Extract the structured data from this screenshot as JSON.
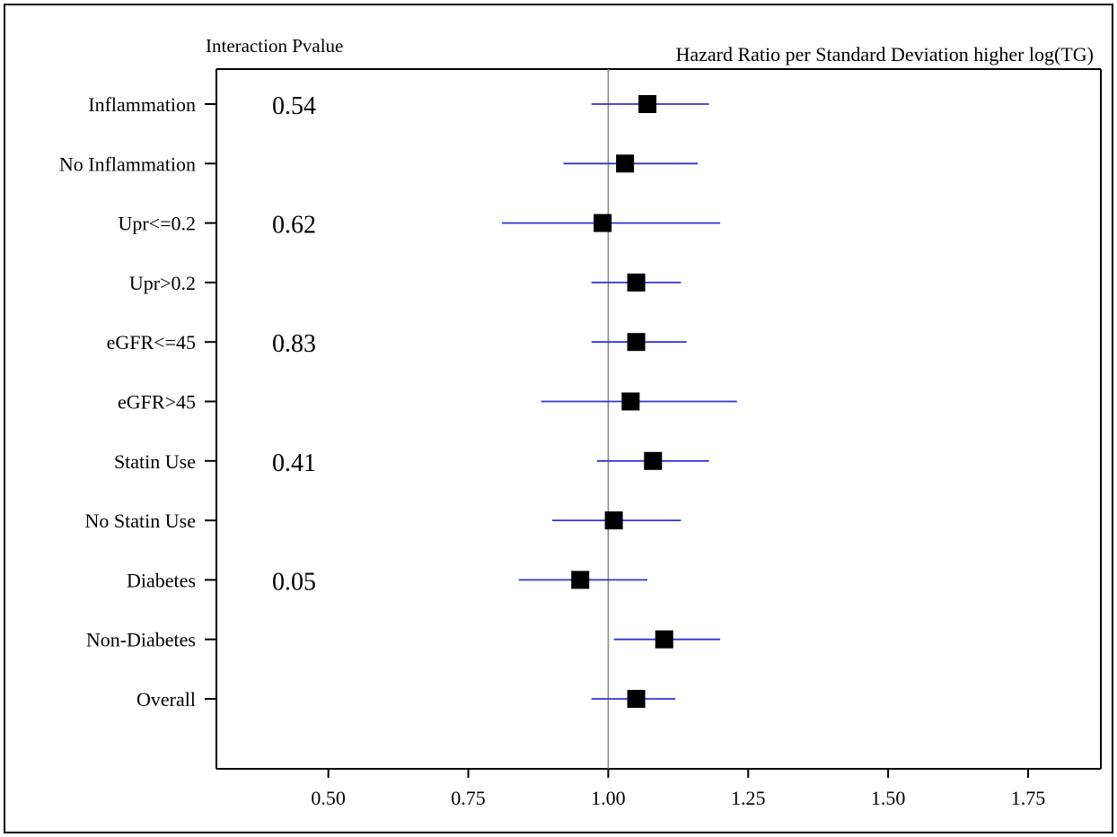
{
  "chart_data": {
    "type": "forest",
    "pvalue_header": "Interaction Pvalue",
    "xaxis_header": "Hazard Ratio per Standard Deviation higher log(TG)",
    "reference_line": 1.0,
    "xlim": [
      0.3,
      1.88
    ],
    "xticks": [
      0.5,
      0.75,
      1.0,
      1.25,
      1.5,
      1.75
    ],
    "xtick_labels": [
      "0.50",
      "0.75",
      "1.00",
      "1.25",
      "1.50",
      "1.75"
    ],
    "rows": [
      {
        "label": "Inflammation",
        "hr": 1.07,
        "lo": 0.97,
        "hi": 1.18,
        "pvalue": "0.54"
      },
      {
        "label": "No Inflammation",
        "hr": 1.03,
        "lo": 0.92,
        "hi": 1.16,
        "pvalue": ""
      },
      {
        "label": "Upr<=0.2",
        "hr": 0.99,
        "lo": 0.81,
        "hi": 1.2,
        "pvalue": "0.62"
      },
      {
        "label": "Upr>0.2",
        "hr": 1.05,
        "lo": 0.97,
        "hi": 1.13,
        "pvalue": ""
      },
      {
        "label": "eGFR<=45",
        "hr": 1.05,
        "lo": 0.97,
        "hi": 1.14,
        "pvalue": "0.83"
      },
      {
        "label": "eGFR>45",
        "hr": 1.04,
        "lo": 0.88,
        "hi": 1.23,
        "pvalue": ""
      },
      {
        "label": "Statin Use",
        "hr": 1.08,
        "lo": 0.98,
        "hi": 1.18,
        "pvalue": "0.41"
      },
      {
        "label": "No Statin Use",
        "hr": 1.01,
        "lo": 0.9,
        "hi": 1.13,
        "pvalue": ""
      },
      {
        "label": "Diabetes",
        "hr": 0.95,
        "lo": 0.84,
        "hi": 1.07,
        "pvalue": "0.05"
      },
      {
        "label": "Non-Diabetes",
        "hr": 1.1,
        "lo": 1.01,
        "hi": 1.2,
        "pvalue": ""
      },
      {
        "label": "Overall",
        "hr": 1.05,
        "lo": 0.97,
        "hi": 1.12,
        "pvalue": ""
      }
    ],
    "colors": {
      "ci_line": "#3333cc",
      "marker": "#000000",
      "reference_line": "#888888",
      "axis": "#000000"
    }
  }
}
